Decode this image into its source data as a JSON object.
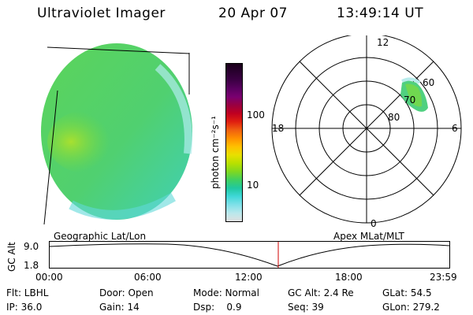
{
  "header": {
    "instrument": "Ultraviolet Imager",
    "date": "20 Apr 07",
    "time": "13:49:14 UT"
  },
  "colorbar": {
    "unit": "photon cm⁻²s⁻¹",
    "ticks": [
      "100",
      "10"
    ],
    "colors": [
      "#1a001a",
      "#2a0030",
      "#3d0045",
      "#5a0060",
      "#7a0070",
      "#9a0040",
      "#c00020",
      "#e02010",
      "#f06010",
      "#ff9000",
      "#ffc000",
      "#e8e000",
      "#b8e000",
      "#80d820",
      "#40d060",
      "#20c8a0",
      "#40d8d8",
      "#80e0e8",
      "#b8e8ec",
      "#e0e0e0"
    ]
  },
  "polar": {
    "mlt_labels": {
      "top": "12",
      "left": "18",
      "right": "6",
      "bottom": "0"
    },
    "lat_labels": [
      "60",
      "70",
      "80"
    ]
  },
  "labels": {
    "geographic": "Geographic Lat/Lon",
    "apex": "Apex MLat/MLT"
  },
  "altitude_plot": {
    "ylabel": "GC Alt",
    "y_ticks": [
      "9.0",
      "1.8"
    ],
    "x_ticks": [
      "00:00",
      "06:00",
      "12:00",
      "18:00",
      "23:59"
    ]
  },
  "info": {
    "flt": "Flt: LBHL",
    "door": "Door: Open",
    "mode": "Mode: Normal",
    "gcalt": "GC Alt: 2.4 Re",
    "glat": "GLat:  54.5",
    "ip": "IP: 36.0",
    "gain": "Gain: 14",
    "dsp": "Dsp:    0.9",
    "seq": "Seq: 39",
    "glon": "GLon: 279.2"
  }
}
